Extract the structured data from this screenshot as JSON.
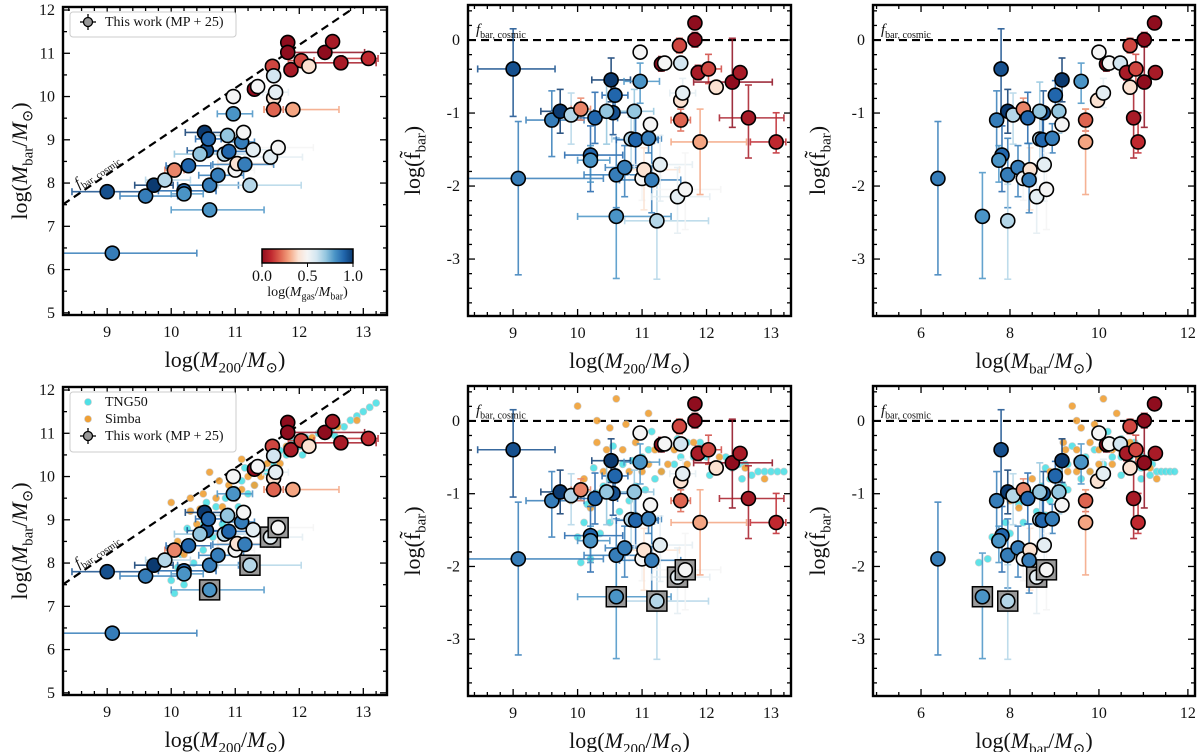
{
  "chart_data": {
    "type": "scatter",
    "colormap": {
      "name": "RdBu",
      "range": [
        0.0,
        1.0
      ],
      "ticks": [
        "0.0",
        "0.5",
        "1.0"
      ],
      "label": "log(M_{gas}/M_{bar})",
      "stops": [
        "#8f0d1e",
        "#c0282f",
        "#de6450",
        "#f4a582",
        "#fbe2d2",
        "#f5f5f5",
        "#d3e6f1",
        "#94c6df",
        "#4a94c6",
        "#2166ac",
        "#0b3a70"
      ]
    },
    "reference_line_label": "f_{bar, cosmic}",
    "legend_labels": {
      "observations": "This work (MP + 25)",
      "tng50": "TNG50",
      "simba": "Simba"
    },
    "colors": {
      "tng50": "#4fe0e6",
      "simba": "#f0a035",
      "marker_edge": "#000000",
      "highlight_box": "#9a9a9a"
    },
    "observations": {
      "fields": [
        "log_M200",
        "log_Mbar",
        "log_Mgas_over_Mbar_color",
        "log_M200_err_minus",
        "log_M200_err_plus",
        "highlighted"
      ],
      "points": [
        [
          9.0,
          7.8,
          0.95,
          0.55,
          0.65,
          false
        ],
        [
          9.08,
          6.38,
          0.85,
          0.78,
          1.32,
          false
        ],
        [
          9.6,
          7.7,
          0.85,
          0.4,
          0.5,
          false
        ],
        [
          9.73,
          7.95,
          1.0,
          0.3,
          0.3,
          false
        ],
        [
          9.9,
          8.07,
          0.65,
          0.3,
          0.4,
          false
        ],
        [
          10.05,
          8.3,
          0.25,
          0.15,
          0.15,
          false
        ],
        [
          10.2,
          7.82,
          0.9,
          0.4,
          0.5,
          false
        ],
        [
          10.2,
          7.75,
          0.8,
          0.2,
          0.3,
          false
        ],
        [
          10.27,
          8.4,
          0.9,
          0.35,
          0.35,
          false
        ],
        [
          10.52,
          9.17,
          1.0,
          0.3,
          0.3,
          false
        ],
        [
          10.55,
          8.75,
          0.95,
          0.3,
          0.3,
          false
        ],
        [
          10.58,
          9.02,
          0.9,
          0.2,
          0.2,
          false
        ],
        [
          10.45,
          8.67,
          0.7,
          0.4,
          0.45,
          false
        ],
        [
          10.6,
          7.95,
          0.85,
          0.5,
          0.45,
          false
        ],
        [
          10.6,
          7.38,
          0.8,
          0.6,
          0.85,
          true
        ],
        [
          10.73,
          8.18,
          0.85,
          0.3,
          0.4,
          false
        ],
        [
          10.83,
          8.67,
          0.65,
          0.3,
          0.4,
          false
        ],
        [
          10.88,
          9.1,
          0.7,
          0.3,
          0.3,
          false
        ],
        [
          10.9,
          8.73,
          0.9,
          0.3,
          0.35,
          false
        ],
        [
          10.97,
          10.0,
          0.5,
          0.0,
          0.0,
          false
        ],
        [
          10.97,
          9.6,
          0.8,
          0.25,
          0.3,
          false
        ],
        [
          11.0,
          8.3,
          0.5,
          0.2,
          0.3,
          false
        ],
        [
          11.03,
          8.45,
          0.4,
          0.3,
          0.55,
          false
        ],
        [
          11.1,
          8.95,
          0.85,
          0.2,
          0.2,
          false
        ],
        [
          11.13,
          9.17,
          0.5,
          0.1,
          0.1,
          false
        ],
        [
          11.15,
          8.43,
          0.85,
          0.5,
          0.45,
          false
        ],
        [
          11.23,
          7.95,
          0.65,
          0.5,
          0.8,
          true
        ],
        [
          11.28,
          8.77,
          0.55,
          0.4,
          0.5,
          false
        ],
        [
          11.3,
          10.17,
          0.0,
          0.1,
          0.1,
          false
        ],
        [
          11.35,
          10.23,
          0.5,
          0.1,
          0.1,
          false
        ],
        [
          11.55,
          8.6,
          0.55,
          0.4,
          0.5,
          true
        ],
        [
          11.58,
          10.7,
          0.15,
          0.1,
          0.1,
          false
        ],
        [
          11.6,
          10.48,
          0.6,
          0.05,
          0.05,
          false
        ],
        [
          11.6,
          9.97,
          0.4,
          0.1,
          0.1,
          false
        ],
        [
          11.6,
          9.7,
          0.2,
          0.15,
          0.15,
          false
        ],
        [
          11.63,
          10.1,
          0.55,
          0.2,
          0.2,
          false
        ],
        [
          11.67,
          8.82,
          0.5,
          0.5,
          0.55,
          true
        ],
        [
          11.82,
          11.25,
          0.0,
          0.05,
          0.05,
          false
        ],
        [
          11.82,
          11.02,
          0.0,
          0.1,
          0.1,
          false
        ],
        [
          11.87,
          10.62,
          0.05,
          0.1,
          0.1,
          false
        ],
        [
          11.9,
          9.7,
          0.3,
          0.45,
          0.72,
          false
        ],
        [
          12.03,
          10.83,
          0.15,
          0.2,
          0.2,
          false
        ],
        [
          12.15,
          10.7,
          0.4,
          0.1,
          0.1,
          false
        ],
        [
          12.4,
          11.02,
          0.0,
          0.6,
          0.62,
          false
        ],
        [
          12.52,
          11.27,
          0.05,
          0.0,
          0.0,
          false
        ],
        [
          12.65,
          10.78,
          0.05,
          0.45,
          0.55,
          false
        ],
        [
          13.08,
          10.88,
          0.1,
          0.4,
          0.15,
          false
        ]
      ]
    },
    "simulations": {
      "fields": [
        "log_M200",
        "log_Mbar"
      ],
      "tng50": [
        [
          10.0,
          7.6
        ],
        [
          10.05,
          7.3
        ],
        [
          10.1,
          7.9
        ],
        [
          10.15,
          8.2
        ],
        [
          10.2,
          7.5
        ],
        [
          10.3,
          8.5
        ],
        [
          10.35,
          8.0
        ],
        [
          10.4,
          8.7
        ],
        [
          10.5,
          8.3
        ],
        [
          10.5,
          8.9
        ],
        [
          10.6,
          9.1
        ],
        [
          10.65,
          8.6
        ],
        [
          10.7,
          9.3
        ],
        [
          10.8,
          8.9
        ],
        [
          10.85,
          9.5
        ],
        [
          10.9,
          9.2
        ],
        [
          11.0,
          9.7
        ],
        [
          11.05,
          9.3
        ],
        [
          11.1,
          9.9
        ],
        [
          11.2,
          9.6
        ],
        [
          11.25,
          10.1
        ],
        [
          11.3,
          9.8
        ],
        [
          11.4,
          10.3
        ],
        [
          11.5,
          10.1
        ],
        [
          11.55,
          10.5
        ],
        [
          11.6,
          10.3
        ],
        [
          11.7,
          10.6
        ],
        [
          11.8,
          10.5
        ],
        [
          11.9,
          10.8
        ],
        [
          12.0,
          10.7
        ],
        [
          12.1,
          10.9
        ],
        [
          12.2,
          10.8
        ],
        [
          12.3,
          11.0
        ],
        [
          12.4,
          10.95
        ],
        [
          12.5,
          11.1
        ],
        [
          12.6,
          11.2
        ],
        [
          12.7,
          11.15
        ],
        [
          12.8,
          11.3
        ],
        [
          12.9,
          11.4
        ],
        [
          13.0,
          11.5
        ],
        [
          13.1,
          11.6
        ],
        [
          13.2,
          11.7
        ],
        [
          10.25,
          8.8
        ],
        [
          10.55,
          9.4
        ],
        [
          11.15,
          10.2
        ],
        [
          12.05,
          10.5
        ],
        [
          12.55,
          10.95
        ],
        [
          10.9,
          8.8
        ]
      ],
      "simba": [
        [
          9.9,
          8.0
        ],
        [
          10.1,
          8.5
        ],
        [
          10.2,
          8.2
        ],
        [
          10.3,
          9.2
        ],
        [
          10.4,
          8.9
        ],
        [
          10.5,
          9.6
        ],
        [
          10.6,
          9.0
        ],
        [
          10.7,
          9.5
        ],
        [
          10.75,
          9.9
        ],
        [
          10.8,
          9.3
        ],
        [
          10.9,
          9.8
        ],
        [
          11.0,
          10.0
        ],
        [
          11.0,
          9.5
        ],
        [
          11.1,
          9.7
        ],
        [
          11.2,
          10.0
        ],
        [
          11.3,
          10.2
        ],
        [
          11.3,
          9.8
        ],
        [
          11.4,
          10.0
        ],
        [
          11.5,
          10.3
        ],
        [
          11.6,
          10.45
        ],
        [
          11.7,
          10.3
        ],
        [
          11.8,
          10.7
        ],
        [
          11.9,
          10.6
        ],
        [
          12.0,
          10.85
        ],
        [
          12.2,
          10.9
        ],
        [
          12.4,
          11.0
        ],
        [
          12.6,
          11.15
        ],
        [
          12.9,
          11.3
        ],
        [
          10.3,
          9.5
        ],
        [
          10.6,
          10.1
        ],
        [
          11.1,
          10.4
        ],
        [
          10.45,
          9.25
        ],
        [
          10.0,
          9.4
        ]
      ]
    },
    "panels": [
      {
        "id": "top-left",
        "x": "log_M200",
        "y": "log_Mbar",
        "xlabel": "log(M_{200}/M_{⊙})",
        "ylabel": "log(M_{bar}/M_{⊙})",
        "xlim": [
          8.31,
          13.37
        ],
        "ylim": [
          4.95,
          12.07
        ],
        "xticks": [
          "9",
          "10",
          "11",
          "12",
          "13"
        ],
        "yticks": [
          "5",
          "6",
          "7",
          "8",
          "9",
          "10",
          "11",
          "12"
        ],
        "show_sims": false,
        "legend": "top-left",
        "colorbar": true
      },
      {
        "id": "top-middle",
        "x": "log_M200",
        "y": "log_fbar",
        "xlabel": "log(M_{200}/M_{⊙})",
        "ylabel": "log(f̃_{bar})",
        "xlim": [
          8.3,
          13.31
        ],
        "ylim": [
          -3.78,
          0.48
        ],
        "xticks": [
          "9",
          "10",
          "11",
          "12",
          "13"
        ],
        "yticks": [
          "-3",
          "-2",
          "-1",
          "0"
        ],
        "show_sims": false
      },
      {
        "id": "top-right",
        "x": "log_Mbar",
        "y": "log_fbar",
        "xlabel": "log(M_{bar}/M_{⊙})",
        "ylabel": "log(f̃_{bar})",
        "xlim": [
          4.92,
          12.16
        ],
        "ylim": [
          -3.78,
          0.48
        ],
        "xticks": [
          "6",
          "8",
          "10",
          "12"
        ],
        "yticks": [
          "-3",
          "-2",
          "-1",
          "0"
        ],
        "show_sims": false
      },
      {
        "id": "bottom-left",
        "x": "log_M200",
        "y": "log_Mbar",
        "xlabel": "log(M_{200}/M_{⊙})",
        "ylabel": "log(M_{bar}/M_{⊙})",
        "xlim": [
          8.31,
          13.37
        ],
        "ylim": [
          4.95,
          12.07
        ],
        "xticks": [
          "9",
          "10",
          "11",
          "12",
          "13"
        ],
        "yticks": [
          "5",
          "6",
          "7",
          "8",
          "9",
          "10",
          "11",
          "12"
        ],
        "show_sims": true,
        "legend": "top-left"
      },
      {
        "id": "bottom-middle",
        "x": "log_M200",
        "y": "log_fbar",
        "xlabel": "log(M_{200}/M_{⊙})",
        "ylabel": "log(f̃_{bar})",
        "xlim": [
          8.3,
          13.31
        ],
        "ylim": [
          -3.78,
          0.48
        ],
        "xticks": [
          "9",
          "10",
          "11",
          "12",
          "13"
        ],
        "yticks": [
          "-3",
          "-2",
          "-1",
          "0"
        ],
        "show_sims": true
      },
      {
        "id": "bottom-right",
        "x": "log_Mbar",
        "y": "log_fbar",
        "xlabel": "log(M_{bar}/M_{⊙})",
        "ylabel": "log(f̃_{bar})",
        "xlim": [
          4.92,
          12.16
        ],
        "ylim": [
          -3.78,
          0.48
        ],
        "xticks": [
          "6",
          "8",
          "10",
          "12"
        ],
        "yticks": [
          "-3",
          "-2",
          "-1",
          "0"
        ],
        "show_sims": true
      }
    ]
  }
}
